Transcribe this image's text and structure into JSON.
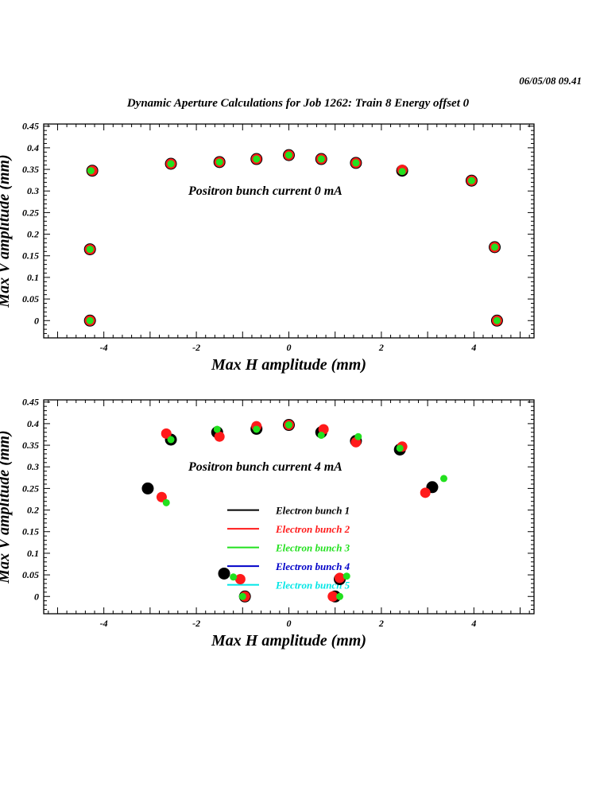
{
  "header": {
    "datestamp": "06/05/08   09.41",
    "title": "Dynamic Aperture Calculations for Job 1262:  Train 8   Energy offset  0"
  },
  "colors": {
    "bunch1": "#000000",
    "bunch2": "#ff1a1a",
    "bunch3": "#22e01e",
    "bunch4": "#0000c8",
    "bunch5": "#00e6e6"
  },
  "chart_data": [
    {
      "type": "scatter",
      "annotation": "Positron bunch current  0 mA",
      "xlabel": "Max H amplitude (mm)",
      "ylabel": "Max V amplitude (mm)",
      "xlim": [
        -5.3,
        5.3
      ],
      "ylim": [
        -0.04,
        0.455
      ],
      "xticks": [
        -4,
        -2,
        0,
        2,
        4
      ],
      "yticks": [
        0,
        0.05,
        0.1,
        0.15,
        0.2,
        0.25,
        0.3,
        0.35,
        0.4,
        0.45
      ],
      "grid": false,
      "series": [
        {
          "color": "#000000",
          "size": 7.5,
          "points": [
            [
              -4.3,
              0.0
            ],
            [
              -4.3,
              0.165
            ],
            [
              -4.25,
              0.347
            ],
            [
              -2.55,
              0.363
            ],
            [
              -1.5,
              0.367
            ],
            [
              -0.7,
              0.374
            ],
            [
              0.0,
              0.383
            ],
            [
              0.7,
              0.374
            ],
            [
              1.45,
              0.365
            ],
            [
              2.45,
              0.347
            ],
            [
              3.95,
              0.324
            ],
            [
              4.45,
              0.17
            ],
            [
              4.5,
              0.0
            ]
          ]
        },
        {
          "color": "#ff1a1a",
          "size": 6.5,
          "points": [
            [
              -4.3,
              0.0
            ],
            [
              -4.3,
              0.165
            ],
            [
              -4.25,
              0.347
            ],
            [
              -2.55,
              0.363
            ],
            [
              -1.5,
              0.367
            ],
            [
              -0.7,
              0.374
            ],
            [
              0.0,
              0.383
            ],
            [
              0.7,
              0.374
            ],
            [
              1.45,
              0.365
            ],
            [
              2.45,
              0.349
            ],
            [
              3.95,
              0.324
            ],
            [
              4.45,
              0.17
            ],
            [
              4.5,
              0.0
            ]
          ]
        },
        {
          "color": "#22e01e",
          "size": 4.5,
          "points": [
            [
              -4.3,
              0.0
            ],
            [
              -4.3,
              0.165
            ],
            [
              -4.28,
              0.347
            ],
            [
              -2.55,
              0.363
            ],
            [
              -1.5,
              0.367
            ],
            [
              -0.7,
              0.374
            ],
            [
              0.0,
              0.383
            ],
            [
              0.7,
              0.374
            ],
            [
              1.45,
              0.365
            ],
            [
              2.45,
              0.345
            ],
            [
              3.95,
              0.324
            ],
            [
              4.45,
              0.17
            ],
            [
              4.5,
              0.0
            ]
          ]
        }
      ]
    },
    {
      "type": "scatter",
      "annotation": "Positron bunch current  4 mA",
      "xlabel": "Max H amplitude (mm)",
      "ylabel": "Max V amplitude (mm)",
      "xlim": [
        -5.3,
        5.3
      ],
      "ylim": [
        -0.04,
        0.455
      ],
      "xticks": [
        -4,
        -2,
        0,
        2,
        4
      ],
      "yticks": [
        0,
        0.05,
        0.1,
        0.15,
        0.2,
        0.25,
        0.3,
        0.35,
        0.4,
        0.45
      ],
      "grid": false,
      "legend": {
        "placement": "center",
        "entries": [
          {
            "label": "Electron bunch 1",
            "color": "#000000"
          },
          {
            "label": "Electron bunch 2",
            "color": "#ff1a1a"
          },
          {
            "label": "Electron bunch 3",
            "color": "#22e01e"
          },
          {
            "label": "Electron bunch 4",
            "color": "#0000c8"
          },
          {
            "label": "Electron bunch 5",
            "color": "#00e6e6"
          }
        ]
      },
      "series": [
        {
          "color": "#000000",
          "size": 7.5,
          "points": [
            [
              -3.05,
              0.25
            ],
            [
              -2.55,
              0.363
            ],
            [
              -1.55,
              0.38
            ],
            [
              -1.4,
              0.053
            ],
            [
              -0.95,
              0.0
            ],
            [
              -0.7,
              0.388
            ],
            [
              0.0,
              0.397
            ],
            [
              0.7,
              0.38
            ],
            [
              1.0,
              0.0
            ],
            [
              1.1,
              0.04
            ],
            [
              1.45,
              0.36
            ],
            [
              2.4,
              0.34
            ],
            [
              3.1,
              0.253
            ]
          ]
        },
        {
          "color": "#ff1a1a",
          "size": 6.5,
          "points": [
            [
              -2.75,
              0.23
            ],
            [
              -2.65,
              0.377
            ],
            [
              -1.5,
              0.37
            ],
            [
              -1.05,
              0.04
            ],
            [
              -0.95,
              0.0
            ],
            [
              -0.7,
              0.394
            ],
            [
              0.0,
              0.397
            ],
            [
              0.75,
              0.387
            ],
            [
              0.95,
              0.0
            ],
            [
              1.1,
              0.043
            ],
            [
              1.45,
              0.357
            ],
            [
              2.45,
              0.347
            ],
            [
              2.95,
              0.24
            ]
          ]
        },
        {
          "color": "#22e01e",
          "size": 4.5,
          "points": [
            [
              -2.65,
              0.217
            ],
            [
              -2.55,
              0.363
            ],
            [
              -1.55,
              0.387
            ],
            [
              -1.2,
              0.045
            ],
            [
              -1.0,
              0.0
            ],
            [
              -0.7,
              0.387
            ],
            [
              0.0,
              0.397
            ],
            [
              0.7,
              0.373
            ],
            [
              1.1,
              0.0
            ],
            [
              1.25,
              0.047
            ],
            [
              1.5,
              0.37
            ],
            [
              2.4,
              0.343
            ],
            [
              3.35,
              0.273
            ]
          ]
        }
      ]
    }
  ]
}
